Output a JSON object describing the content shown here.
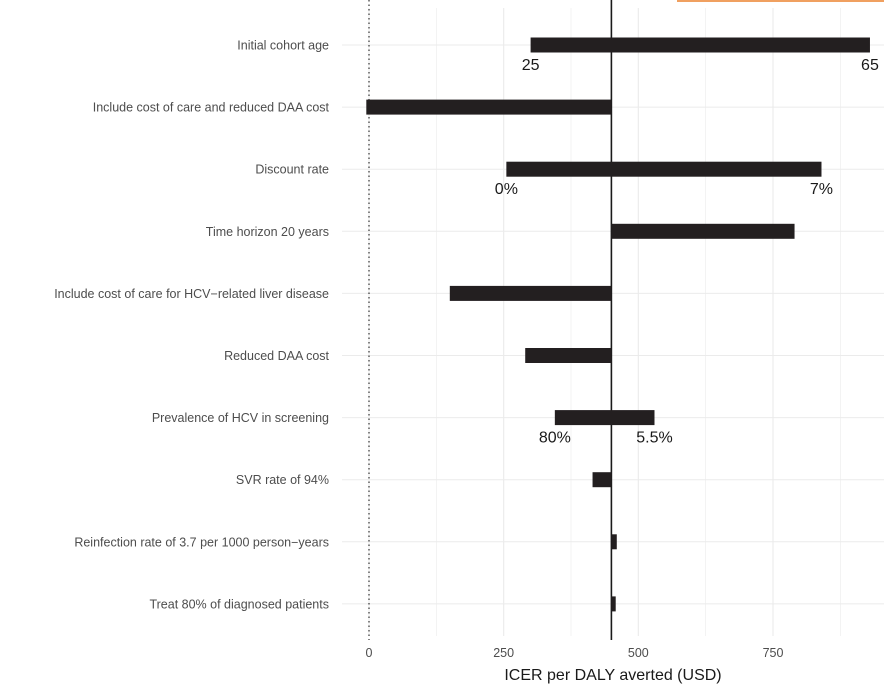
{
  "accent_color": "#f0a060",
  "chart_data": {
    "type": "bar",
    "subtype": "tornado",
    "xlabel": "ICER per DALY averted (USD)",
    "ylabel": "",
    "title": "",
    "xlim": [
      -10,
      950
    ],
    "xticks": [
      0,
      250,
      500,
      750
    ],
    "base_value": 450,
    "grid": true,
    "reference_line": 0,
    "bar_color": "#231f20",
    "categories": [
      "Initial cohort age",
      "Include cost of care and reduced DAA cost",
      "Discount rate",
      "Time horizon 20 years",
      "Include cost of care for HCV−related liver disease",
      "Reduced DAA cost",
      "Prevalence of HCV in screening",
      "SVR rate of 94%",
      "Reinfection rate of 3.7 per 1000 person−years",
      "Treat 80% of diagnosed patients"
    ],
    "bars": [
      {
        "low": 300,
        "high": 930
      },
      {
        "low": -5,
        "high": 450
      },
      {
        "low": 255,
        "high": 840
      },
      {
        "low": 450,
        "high": 790
      },
      {
        "low": 150,
        "high": 450
      },
      {
        "low": 290,
        "high": 450
      },
      {
        "low": 345,
        "high": 530
      },
      {
        "low": 415,
        "high": 450
      },
      {
        "low": 450,
        "high": 460
      },
      {
        "low": 450,
        "high": 458
      }
    ],
    "annotations": [
      {
        "bar": 0,
        "x": 300,
        "text": "25"
      },
      {
        "bar": 0,
        "x": 930,
        "text": "65"
      },
      {
        "bar": 2,
        "x": 255,
        "text": "0%"
      },
      {
        "bar": 2,
        "x": 840,
        "text": "7%"
      },
      {
        "bar": 6,
        "x": 345,
        "text": "80%"
      },
      {
        "bar": 6,
        "x": 530,
        "text": "5.5%"
      }
    ]
  }
}
